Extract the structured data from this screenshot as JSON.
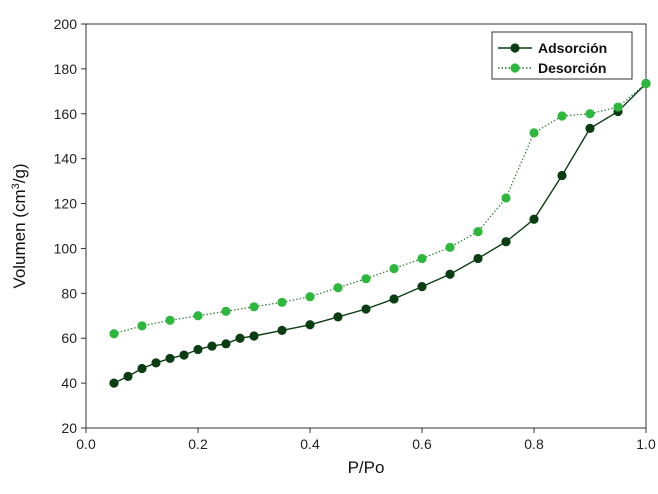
{
  "chart_data": {
    "type": "line",
    "title": "",
    "xlabel": "P/Po",
    "ylabel_parts": {
      "pre": "Volumen (cm",
      "sup": "3",
      "post": "/g)"
    },
    "xlim": [
      0.0,
      1.0
    ],
    "ylim": [
      20,
      200
    ],
    "xticks": [
      0.0,
      0.2,
      0.4,
      0.6,
      0.8,
      1.0
    ],
    "xtick_labels": [
      "0.0",
      "0.2",
      "0.4",
      "0.6",
      "0.8",
      "1.0"
    ],
    "yticks": [
      20,
      40,
      60,
      80,
      100,
      120,
      140,
      160,
      180,
      200
    ],
    "ytick_labels": [
      "20",
      "40",
      "60",
      "80",
      "100",
      "120",
      "140",
      "160",
      "180",
      "200"
    ],
    "grid": false,
    "legend": {
      "position": "top-right"
    },
    "series": [
      {
        "name": "Adsorción",
        "color": "#0b3d12",
        "line_style": "solid",
        "marker": "circle",
        "x": [
          0.05,
          0.075,
          0.1,
          0.125,
          0.15,
          0.175,
          0.2,
          0.225,
          0.25,
          0.275,
          0.3,
          0.35,
          0.4,
          0.45,
          0.5,
          0.55,
          0.6,
          0.65,
          0.7,
          0.75,
          0.8,
          0.85,
          0.9,
          0.95,
          1.0
        ],
        "y": [
          40,
          43,
          46.5,
          49,
          51,
          52.5,
          55,
          56.5,
          57.5,
          60,
          61,
          63.5,
          66,
          69.5,
          73,
          77.5,
          83,
          88.5,
          95.5,
          103,
          113,
          132.5,
          153.5,
          161,
          173.5
        ]
      },
      {
        "name": "Desorción",
        "color": "#2db83d",
        "line_style": "dotted",
        "marker": "circle",
        "x": [
          0.05,
          0.1,
          0.15,
          0.2,
          0.25,
          0.3,
          0.35,
          0.4,
          0.45,
          0.5,
          0.55,
          0.6,
          0.65,
          0.7,
          0.75,
          0.8,
          0.85,
          0.9,
          0.95,
          1.0
        ],
        "y": [
          62,
          65.5,
          68,
          70,
          72,
          74,
          76,
          78.5,
          82.5,
          86.5,
          91,
          95.5,
          100.5,
          107.5,
          122.5,
          151.5,
          159,
          160,
          163,
          173.5
        ]
      }
    ]
  }
}
